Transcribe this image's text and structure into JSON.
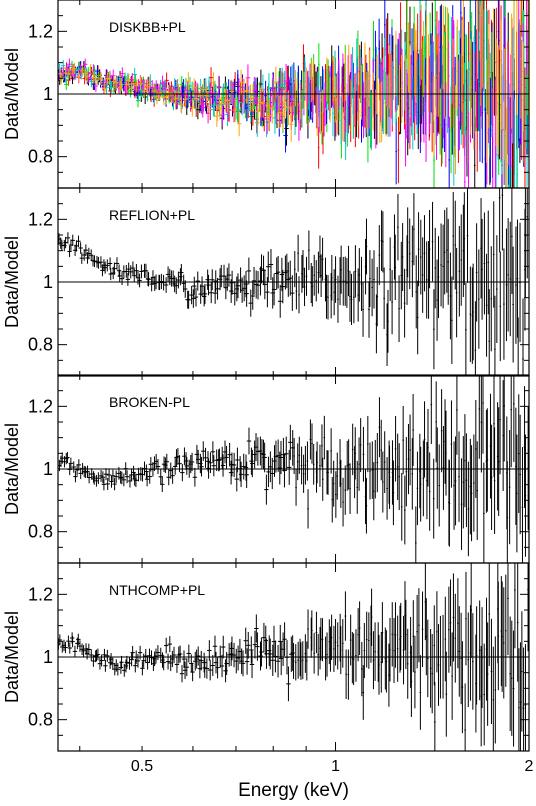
{
  "chart_data": {
    "type": "scatter",
    "x_axis": {
      "label": "Energy (keV)",
      "scale": "log",
      "range": [
        0.37,
        2.0
      ],
      "tick_labels": [
        "0.5",
        "1",
        "2"
      ],
      "tick_values": [
        0.5,
        1,
        2
      ]
    },
    "y_axis": {
      "label": "Data/Model",
      "range": [
        0.7,
        1.3
      ],
      "tick_labels": [
        "0.8",
        "1",
        "1.2"
      ],
      "tick_values": [
        0.8,
        1.0,
        1.2
      ],
      "minor_step": 0.05
    },
    "reference_line": 1.0,
    "grid": false,
    "panels": [
      {
        "name": "DISKBB+PL",
        "series_colors": [
          "#000000",
          "#ff0000",
          "#00e000",
          "#0000ff",
          "#00c8c8",
          "#ff00ff",
          "#ffa500"
        ],
        "approx_residuals": [
          {
            "e": 0.38,
            "r": 1.06
          },
          {
            "e": 0.4,
            "r": 1.08
          },
          {
            "e": 0.42,
            "r": 1.05
          },
          {
            "e": 0.45,
            "r": 1.04
          },
          {
            "e": 0.5,
            "r": 1.02
          },
          {
            "e": 0.6,
            "r": 0.99
          },
          {
            "e": 0.8,
            "r": 0.97
          },
          {
            "e": 1.0,
            "r": 1.0
          },
          {
            "e": 1.5,
            "r": 1.02
          },
          {
            "e": 2.0,
            "r": 1.0
          }
        ]
      },
      {
        "name": "REFLION+PL",
        "series_colors": [
          "#000000"
        ],
        "approx_residuals": [
          {
            "e": 0.38,
            "r": 1.12
          },
          {
            "e": 0.4,
            "r": 1.1
          },
          {
            "e": 0.42,
            "r": 1.07
          },
          {
            "e": 0.45,
            "r": 1.04
          },
          {
            "e": 0.5,
            "r": 1.02
          },
          {
            "e": 0.6,
            "r": 0.98
          },
          {
            "e": 0.8,
            "r": 0.99
          },
          {
            "e": 1.0,
            "r": 1.01
          },
          {
            "e": 1.5,
            "r": 1.02
          },
          {
            "e": 2.0,
            "r": 1.0
          }
        ]
      },
      {
        "name": "BROKEN-PL",
        "series_colors": [
          "#000000"
        ],
        "approx_residuals": [
          {
            "e": 0.38,
            "r": 1.02
          },
          {
            "e": 0.4,
            "r": 1.0
          },
          {
            "e": 0.42,
            "r": 0.97
          },
          {
            "e": 0.45,
            "r": 0.96
          },
          {
            "e": 0.5,
            "r": 0.98
          },
          {
            "e": 0.6,
            "r": 1.02
          },
          {
            "e": 0.8,
            "r": 1.03
          },
          {
            "e": 1.0,
            "r": 1.01
          },
          {
            "e": 1.5,
            "r": 1.0
          },
          {
            "e": 2.0,
            "r": 1.0
          }
        ]
      },
      {
        "name": "NTHCOMP+PL",
        "series_colors": [
          "#000000"
        ],
        "approx_residuals": [
          {
            "e": 0.38,
            "r": 1.04
          },
          {
            "e": 0.4,
            "r": 1.03
          },
          {
            "e": 0.42,
            "r": 1.0
          },
          {
            "e": 0.45,
            "r": 0.98
          },
          {
            "e": 0.5,
            "r": 1.0
          },
          {
            "e": 0.6,
            "r": 0.99
          },
          {
            "e": 0.8,
            "r": 1.01
          },
          {
            "e": 1.0,
            "r": 1.01
          },
          {
            "e": 1.5,
            "r": 1.01
          },
          {
            "e": 2.0,
            "r": 1.0
          }
        ]
      }
    ]
  }
}
